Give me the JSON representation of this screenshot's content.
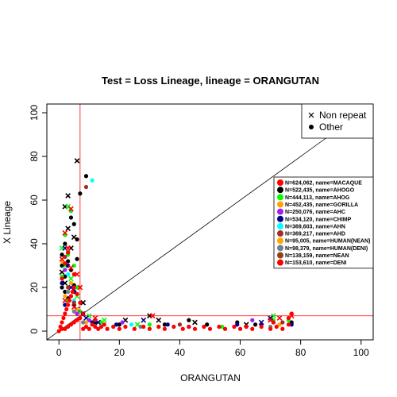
{
  "chart_data": {
    "type": "scatter",
    "title": "Test = Loss Lineage, lineage = ORANGUTAN",
    "xlabel": "ORANGUTAN",
    "ylabel": "X Lineage",
    "xlim": [
      -4,
      104
    ],
    "ylim": [
      -4,
      104
    ],
    "xticks": [
      0,
      20,
      40,
      60,
      80,
      100
    ],
    "yticks": [
      0,
      20,
      40,
      60,
      80,
      100
    ],
    "reference_lines": {
      "vertical_x": 7,
      "horizontal_y": 7,
      "diagonal": "y = x",
      "color": "#ff0000"
    },
    "marker_legend": {
      "position": "top-right",
      "entries": [
        {
          "label": "Non repeat",
          "marker": "x"
        },
        {
          "label": "Other",
          "marker": "circle"
        }
      ]
    },
    "series_legend": {
      "position": "right",
      "entries": [
        {
          "label": "N=624,062, name=MACAQUE",
          "color": "#ff0000"
        },
        {
          "label": "N=522,435, name=AHOGO",
          "color": "#000000"
        },
        {
          "label": "N=444,113, name=AHOG",
          "color": "#00ff00"
        },
        {
          "label": "N=452,435, name=GORILLA",
          "color": "#ffa500"
        },
        {
          "label": "N=250,076, name=AHC",
          "color": "#a020f0"
        },
        {
          "label": "N=534,120, name=CHIMP",
          "color": "#00008b"
        },
        {
          "label": "N=369,603, name=AHN",
          "color": "#00ffff"
        },
        {
          "label": "N=369,217, name=AHD",
          "color": "#a52a2a"
        },
        {
          "label": "N=95,005, name=HUMAN(NEAN)",
          "color": "#ffa500"
        },
        {
          "label": "N=98,379, name=HUMAN(DENI)",
          "color": "#708090"
        },
        {
          "label": "N=138,159, name=NEAN",
          "color": "#8b4513"
        },
        {
          "label": "N=153,610, name=DENI",
          "color": "#ff0000"
        }
      ]
    },
    "series": [
      {
        "color": "#000000",
        "marker": "x",
        "points": [
          [
            6,
            78
          ],
          [
            3,
            62
          ],
          [
            2,
            57
          ],
          [
            3,
            47
          ],
          [
            5,
            43
          ],
          [
            4,
            38
          ],
          [
            1,
            27
          ],
          [
            2,
            22
          ],
          [
            5,
            19
          ],
          [
            8,
            13
          ],
          [
            22,
            5
          ],
          [
            30,
            7
          ],
          [
            33,
            5
          ],
          [
            45,
            4
          ],
          [
            62,
            3
          ]
        ]
      },
      {
        "color": "#000000",
        "marker": "circle",
        "points": [
          [
            1,
            35
          ],
          [
            2,
            40
          ],
          [
            3,
            36
          ],
          [
            4,
            52
          ],
          [
            5,
            49
          ],
          [
            6,
            42
          ],
          [
            1,
            30
          ],
          [
            2,
            25
          ],
          [
            3,
            32
          ],
          [
            4,
            28
          ],
          [
            5,
            21
          ],
          [
            6,
            33
          ],
          [
            7,
            63
          ],
          [
            9,
            71
          ],
          [
            1,
            20
          ],
          [
            2,
            18
          ],
          [
            3,
            15
          ],
          [
            5,
            12
          ],
          [
            12,
            4
          ],
          [
            20,
            3
          ],
          [
            35,
            3
          ],
          [
            43,
            5
          ],
          [
            59,
            4
          ],
          [
            71,
            4
          ],
          [
            77,
            4
          ],
          [
            49,
            3
          ],
          [
            65,
            3
          ]
        ]
      },
      {
        "color": "#00ff00",
        "marker": "x",
        "points": [
          [
            3,
            57
          ],
          [
            1,
            38
          ],
          [
            2,
            30
          ],
          [
            4,
            24
          ],
          [
            6,
            16
          ],
          [
            10,
            7
          ],
          [
            15,
            5
          ],
          [
            26,
            3
          ],
          [
            71,
            7
          ]
        ]
      },
      {
        "color": "#00ff00",
        "marker": "circle",
        "points": [
          [
            4,
            55
          ],
          [
            2,
            44
          ],
          [
            3,
            35
          ],
          [
            1,
            25
          ],
          [
            5,
            30
          ],
          [
            6,
            20
          ],
          [
            3,
            14
          ],
          [
            7,
            9
          ],
          [
            14,
            4
          ],
          [
            30,
            3
          ],
          [
            54,
            2
          ],
          [
            71,
            5
          ],
          [
            76,
            5
          ]
        ]
      },
      {
        "color": "#00008b",
        "marker": "x",
        "points": [
          [
            2,
            38
          ],
          [
            4,
            20
          ],
          [
            6,
            10
          ],
          [
            9,
            6
          ],
          [
            13,
            4
          ],
          [
            28,
            5
          ],
          [
            67,
            4
          ],
          [
            70,
            6
          ]
        ]
      },
      {
        "color": "#00008b",
        "marker": "circle",
        "points": [
          [
            3,
            30
          ],
          [
            1,
            22
          ],
          [
            5,
            18
          ],
          [
            2,
            12
          ],
          [
            8,
            8
          ],
          [
            11,
            4
          ],
          [
            19,
            3
          ],
          [
            36,
            3
          ],
          [
            43,
            2
          ],
          [
            59,
            3
          ],
          [
            67,
            3
          ],
          [
            77,
            3
          ]
        ]
      },
      {
        "color": "#a020f0",
        "marker": "circle",
        "points": [
          [
            2,
            28
          ],
          [
            4,
            16
          ],
          [
            6,
            8
          ],
          [
            10,
            5
          ],
          [
            21,
            4
          ],
          [
            64,
            5
          ]
        ]
      },
      {
        "color": "#00ffff",
        "marker": "circle",
        "points": [
          [
            11,
            69
          ],
          [
            3,
            26
          ],
          [
            5,
            14
          ],
          [
            7,
            6
          ],
          [
            24,
            3
          ],
          [
            48,
            2
          ]
        ]
      },
      {
        "color": "#ffa500",
        "marker": "circle",
        "points": [
          [
            1,
            32
          ],
          [
            4,
            22
          ],
          [
            2,
            16
          ],
          [
            6,
            10
          ],
          [
            9,
            4
          ],
          [
            33,
            2
          ],
          [
            73,
            3
          ]
        ]
      },
      {
        "color": "#a52a2a",
        "marker": "circle",
        "points": [
          [
            9,
            66
          ],
          [
            2,
            34
          ],
          [
            3,
            20
          ],
          [
            5,
            13
          ],
          [
            12,
            5
          ],
          [
            40,
            3
          ],
          [
            74,
            4
          ]
        ]
      },
      {
        "color": "#708090",
        "marker": "circle",
        "points": [
          [
            3,
            18
          ],
          [
            5,
            9
          ],
          [
            8,
            4
          ],
          [
            27,
            2
          ],
          [
            70,
            2
          ]
        ]
      },
      {
        "color": "#ff0000",
        "marker": "x",
        "points": [
          [
            4,
            56
          ],
          [
            2,
            45
          ],
          [
            3,
            38
          ],
          [
            1,
            33
          ],
          [
            4,
            29
          ],
          [
            6,
            26
          ],
          [
            7,
            20
          ],
          [
            2,
            14
          ],
          [
            5,
            11
          ],
          [
            8,
            8
          ],
          [
            12,
            6
          ],
          [
            31,
            7
          ],
          [
            70,
            5
          ],
          [
            73,
            6
          ],
          [
            77,
            7
          ]
        ]
      },
      {
        "color": "#ff0000",
        "marker": "circle",
        "points": [
          [
            0,
            0
          ],
          [
            0.5,
            2
          ],
          [
            1,
            4
          ],
          [
            1.5,
            6
          ],
          [
            2,
            8
          ],
          [
            2.5,
            10
          ],
          [
            3,
            12
          ],
          [
            3.5,
            14
          ],
          [
            4,
            16
          ],
          [
            4.5,
            18
          ],
          [
            5,
            20
          ],
          [
            1,
            24
          ],
          [
            2,
            31
          ],
          [
            3,
            36
          ],
          [
            5,
            26
          ],
          [
            6,
            17
          ],
          [
            7,
            13
          ],
          [
            1,
            1
          ],
          [
            2,
            1
          ],
          [
            3,
            2
          ],
          [
            4,
            3
          ],
          [
            5,
            4
          ],
          [
            6,
            5
          ],
          [
            7,
            6
          ],
          [
            8,
            1
          ],
          [
            9,
            2
          ],
          [
            10,
            1
          ],
          [
            11,
            3
          ],
          [
            12,
            2
          ],
          [
            13,
            1
          ],
          [
            14,
            2
          ],
          [
            15,
            3
          ],
          [
            16,
            1
          ],
          [
            18,
            2
          ],
          [
            20,
            1
          ],
          [
            22,
            2
          ],
          [
            25,
            1
          ],
          [
            28,
            2
          ],
          [
            30,
            1
          ],
          [
            33,
            2
          ],
          [
            35,
            1
          ],
          [
            38,
            2
          ],
          [
            41,
            1
          ],
          [
            43,
            2
          ],
          [
            45,
            1
          ],
          [
            48,
            2
          ],
          [
            50,
            1
          ],
          [
            53,
            2
          ],
          [
            55,
            1
          ],
          [
            58,
            2
          ],
          [
            60,
            1
          ],
          [
            62,
            2
          ],
          [
            64,
            1
          ],
          [
            67,
            2
          ],
          [
            70,
            1
          ],
          [
            72,
            2
          ],
          [
            74,
            1
          ],
          [
            76,
            3
          ],
          [
            77,
            8
          ],
          [
            76,
            6
          ],
          [
            71,
            4
          ]
        ]
      }
    ]
  }
}
